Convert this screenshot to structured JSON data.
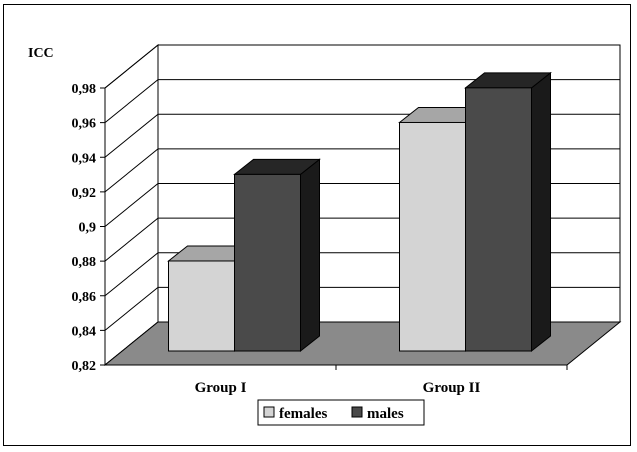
{
  "chart_data": {
    "type": "bar",
    "style": "3d-clustered-column",
    "ylabel": "ICC",
    "xlabel": "",
    "title": "",
    "categories": [
      "Group I",
      "Group II"
    ],
    "series": [
      {
        "name": "females",
        "values": [
          0.872,
          0.952
        ],
        "front_color": "#d4d4d4",
        "top_color": "#a6a6a6",
        "side_color": "#7f7f7f"
      },
      {
        "name": "males",
        "values": [
          0.922,
          0.972
        ],
        "front_color": "#4a4a4a",
        "top_color": "#262626",
        "side_color": "#1a1a1a"
      }
    ],
    "ylim": [
      0.82,
      0.98
    ],
    "yticks": [
      "0,82",
      "0,84",
      "0,86",
      "0,88",
      "0,9",
      "0,92",
      "0,94",
      "0,96",
      "0,98"
    ],
    "grid": true,
    "floor_color": "#8a8a8a",
    "legend_position": "bottom"
  }
}
